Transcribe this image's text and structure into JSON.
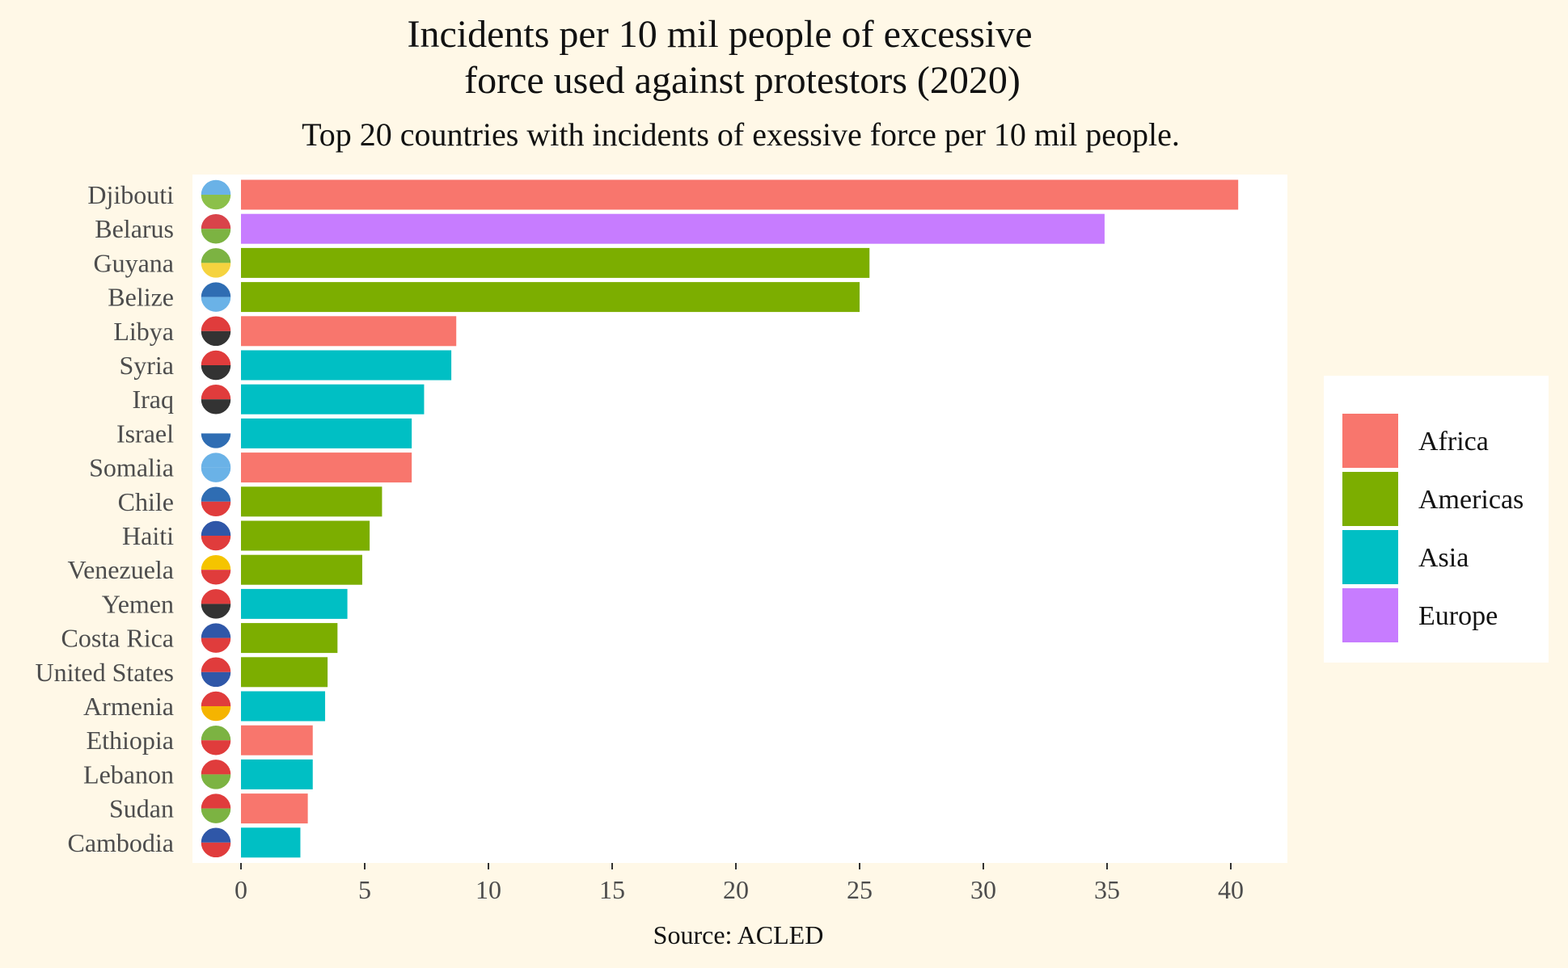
{
  "chart_data": {
    "type": "bar",
    "orientation": "horizontal",
    "title": "Incidents per 10 mil people of excessive force used against protestors (2020)",
    "title_lines": [
      "Incidents per 10 mil people of excessive",
      "force used against protestors (2020)"
    ],
    "subtitle": "Top 20 countries with incidents of exessive force per 10 mil people.",
    "caption": "Source: ACLED",
    "xlabel": "",
    "ylabel": "",
    "xlim": [
      0,
      42
    ],
    "x_ticks": [
      0,
      5,
      10,
      15,
      20,
      25,
      30,
      35,
      40
    ],
    "grid": false,
    "legend_position": "right",
    "legend": [
      {
        "label": "Africa",
        "color": "#f8766d"
      },
      {
        "label": "Americas",
        "color": "#7cae00"
      },
      {
        "label": "Asia",
        "color": "#00bfc4"
      },
      {
        "label": "Europe",
        "color": "#c77cff"
      }
    ],
    "categories": [
      "Djibouti",
      "Belarus",
      "Guyana",
      "Belize",
      "Libya",
      "Syria",
      "Iraq",
      "Israel",
      "Somalia",
      "Chile",
      "Haiti",
      "Venezuela",
      "Yemen",
      "Costa Rica",
      "United States",
      "Armenia",
      "Ethiopia",
      "Lebanon",
      "Sudan",
      "Cambodia"
    ],
    "values": [
      40.3,
      34.9,
      25.4,
      25.0,
      8.7,
      8.5,
      7.4,
      6.9,
      6.9,
      5.7,
      5.2,
      4.9,
      4.3,
      3.9,
      3.5,
      3.4,
      2.9,
      2.9,
      2.7,
      2.4
    ],
    "regions": [
      "Africa",
      "Europe",
      "Americas",
      "Americas",
      "Africa",
      "Asia",
      "Asia",
      "Asia",
      "Africa",
      "Americas",
      "Americas",
      "Americas",
      "Asia",
      "Americas",
      "Americas",
      "Asia",
      "Africa",
      "Asia",
      "Africa",
      "Asia"
    ],
    "flag_icons": [
      "djibouti-flag-icon",
      "belarus-flag-icon",
      "guyana-flag-icon",
      "belize-flag-icon",
      "libya-flag-icon",
      "syria-flag-icon",
      "iraq-flag-icon",
      "israel-flag-icon",
      "somalia-flag-icon",
      "chile-flag-icon",
      "haiti-flag-icon",
      "venezuela-flag-icon",
      "yemen-flag-icon",
      "costa-rica-flag-icon",
      "united-states-flag-icon",
      "armenia-flag-icon",
      "ethiopia-flag-icon",
      "lebanon-flag-icon",
      "sudan-flag-icon",
      "cambodia-flag-icon"
    ],
    "flag_colors": [
      [
        "#6ab2e7",
        "#8cc04a"
      ],
      [
        "#d9434a",
        "#7cb342"
      ],
      [
        "#7cb342",
        "#f5d33f"
      ],
      [
        "#2f6db3",
        "#6ab2e7"
      ],
      [
        "#e03c3c",
        "#333333"
      ],
      [
        "#e03c3c",
        "#333333"
      ],
      [
        "#e03c3c",
        "#333333"
      ],
      [
        "#ffffff",
        "#2f6db3"
      ],
      [
        "#6ab2e7",
        "#6ab2e7"
      ],
      [
        "#2f6db3",
        "#e03c3c"
      ],
      [
        "#2f57a8",
        "#e03c3c"
      ],
      [
        "#f5c400",
        "#e03c3c"
      ],
      [
        "#e03c3c",
        "#333333"
      ],
      [
        "#2f57a8",
        "#e03c3c"
      ],
      [
        "#e03c3c",
        "#2f57a8"
      ],
      [
        "#e03c3c",
        "#f5b400"
      ],
      [
        "#7cb342",
        "#e03c3c"
      ],
      [
        "#e03c3c",
        "#7cb342"
      ],
      [
        "#e03c3c",
        "#7cb342"
      ],
      [
        "#2f57a8",
        "#e03c3c"
      ]
    ]
  }
}
